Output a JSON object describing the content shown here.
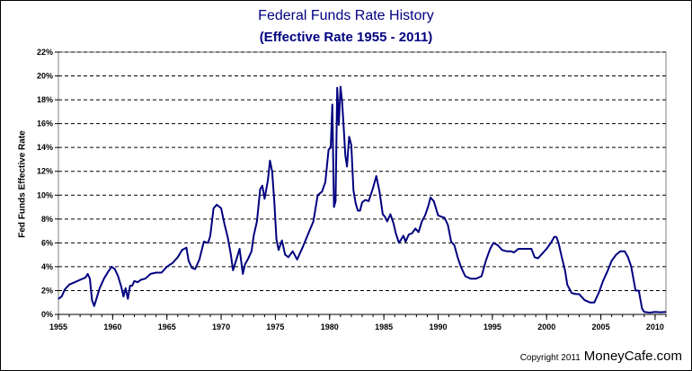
{
  "chart_data": {
    "type": "line",
    "title": "Federal Funds Rate History",
    "subtitle": "(Effective Rate 1955 - 2011)",
    "xlabel": "",
    "ylabel": "Fed Funds Effective Rate",
    "xlim": [
      1955,
      2011
    ],
    "ylim": [
      0,
      22
    ],
    "x_ticks": [
      "1955",
      "1960",
      "1965",
      "1970",
      "1975",
      "1980",
      "1985",
      "1990",
      "1995",
      "2000",
      "2005",
      "2010"
    ],
    "y_ticks": [
      "0%",
      "2%",
      "4%",
      "6%",
      "8%",
      "10%",
      "12%",
      "14%",
      "16%",
      "18%",
      "20%",
      "22%"
    ],
    "grid": "horizontal dashed",
    "line_color": "#000080",
    "series": [
      {
        "name": "",
        "x": [
          1955.0,
          1955.3,
          1955.6,
          1956.0,
          1956.5,
          1957.0,
          1957.5,
          1957.7,
          1957.9,
          1958.1,
          1958.3,
          1958.5,
          1958.8,
          1959.2,
          1959.6,
          1959.9,
          1960.2,
          1960.5,
          1960.8,
          1961.0,
          1961.2,
          1961.4,
          1961.6,
          1961.8,
          1962.0,
          1962.3,
          1962.6,
          1963.0,
          1963.5,
          1964.0,
          1964.5,
          1965.0,
          1965.5,
          1966.0,
          1966.4,
          1966.8,
          1967.0,
          1967.3,
          1967.6,
          1968.0,
          1968.4,
          1968.8,
          1969.0,
          1969.3,
          1969.6,
          1970.0,
          1970.3,
          1970.6,
          1970.9,
          1971.1,
          1971.4,
          1971.7,
          1972.0,
          1972.2,
          1972.5,
          1972.8,
          1973.0,
          1973.3,
          1973.6,
          1973.8,
          1974.0,
          1974.3,
          1974.5,
          1974.7,
          1974.9,
          1975.1,
          1975.3,
          1975.6,
          1975.9,
          1976.2,
          1976.6,
          1977.0,
          1977.5,
          1978.0,
          1978.5,
          1978.9,
          1979.3,
          1979.6,
          1979.9,
          1980.1,
          1980.25,
          1980.4,
          1980.55,
          1980.7,
          1980.85,
          1981.0,
          1981.15,
          1981.3,
          1981.45,
          1981.6,
          1981.8,
          1982.0,
          1982.2,
          1982.4,
          1982.6,
          1982.8,
          1983.0,
          1983.3,
          1983.6,
          1984.0,
          1984.3,
          1984.6,
          1984.9,
          1985.1,
          1985.3,
          1985.6,
          1985.9,
          1986.1,
          1986.4,
          1986.8,
          1987.0,
          1987.3,
          1987.6,
          1987.9,
          1988.2,
          1988.5,
          1988.8,
          1989.1,
          1989.3,
          1989.6,
          1990.0,
          1990.3,
          1990.6,
          1990.9,
          1991.2,
          1991.5,
          1991.8,
          1992.1,
          1992.5,
          1993.0,
          1993.5,
          1994.0,
          1994.4,
          1994.8,
          1995.1,
          1995.5,
          1995.9,
          1996.3,
          1996.7,
          1997.0,
          1997.4,
          1997.8,
          1998.2,
          1998.6,
          1998.9,
          1999.2,
          1999.6,
          2000.0,
          2000.4,
          2000.7,
          2000.9,
          2001.1,
          2001.4,
          2001.7,
          2001.9,
          2002.3,
          2002.7,
          2003.0,
          2003.5,
          2004.0,
          2004.4,
          2004.8,
          2005.2,
          2005.6,
          2006.0,
          2006.4,
          2006.8,
          2007.2,
          2007.5,
          2007.8,
          2008.0,
          2008.2,
          2008.5,
          2008.8,
          2009.0,
          2009.5,
          2010.0,
          2010.5,
          2011.0
        ],
        "values": [
          1.3,
          1.5,
          2.1,
          2.5,
          2.7,
          2.9,
          3.1,
          3.4,
          3.0,
          1.2,
          0.7,
          1.3,
          2.2,
          3.0,
          3.6,
          4.0,
          3.8,
          3.2,
          2.3,
          1.5,
          2.2,
          1.3,
          2.4,
          2.4,
          2.8,
          2.7,
          2.9,
          3.0,
          3.4,
          3.5,
          3.5,
          4.0,
          4.3,
          4.8,
          5.4,
          5.6,
          4.5,
          3.9,
          3.8,
          4.6,
          6.1,
          6.0,
          6.6,
          8.9,
          9.2,
          8.9,
          7.6,
          6.5,
          5.0,
          3.7,
          4.6,
          5.5,
          3.4,
          4.2,
          4.7,
          5.3,
          6.6,
          7.8,
          10.5,
          10.8,
          9.7,
          11.2,
          12.9,
          12.0,
          9.5,
          6.3,
          5.4,
          6.2,
          5.0,
          4.8,
          5.3,
          4.6,
          5.6,
          6.7,
          7.8,
          10.0,
          10.3,
          11.1,
          13.8,
          14.0,
          17.6,
          9.0,
          9.5,
          19.0,
          15.9,
          19.1,
          17.8,
          15.6,
          13.3,
          12.4,
          14.9,
          14.2,
          10.4,
          9.3,
          8.7,
          8.7,
          9.4,
          9.6,
          9.5,
          10.6,
          11.6,
          10.3,
          8.4,
          8.2,
          7.8,
          8.4,
          7.6,
          6.8,
          6.0,
          6.6,
          6.1,
          6.7,
          6.8,
          7.2,
          6.9,
          7.8,
          8.3,
          9.1,
          9.8,
          9.5,
          8.3,
          8.2,
          8.1,
          7.5,
          6.1,
          5.8,
          4.8,
          4.0,
          3.2,
          3.0,
          3.0,
          3.2,
          4.5,
          5.5,
          6.0,
          5.8,
          5.4,
          5.3,
          5.3,
          5.2,
          5.5,
          5.5,
          5.5,
          5.5,
          4.8,
          4.7,
          5.1,
          5.5,
          6.0,
          6.5,
          6.5,
          6.0,
          4.8,
          3.7,
          2.5,
          1.8,
          1.7,
          1.7,
          1.2,
          1.0,
          1.0,
          1.8,
          2.8,
          3.6,
          4.5,
          5.0,
          5.3,
          5.3,
          4.8,
          4.0,
          3.0,
          2.0,
          2.0,
          0.5,
          0.2,
          0.15,
          0.2,
          0.18,
          0.2
        ]
      }
    ]
  },
  "footer": {
    "copyright": "Copyright 2011",
    "brand": "MoneyCafe.com"
  }
}
